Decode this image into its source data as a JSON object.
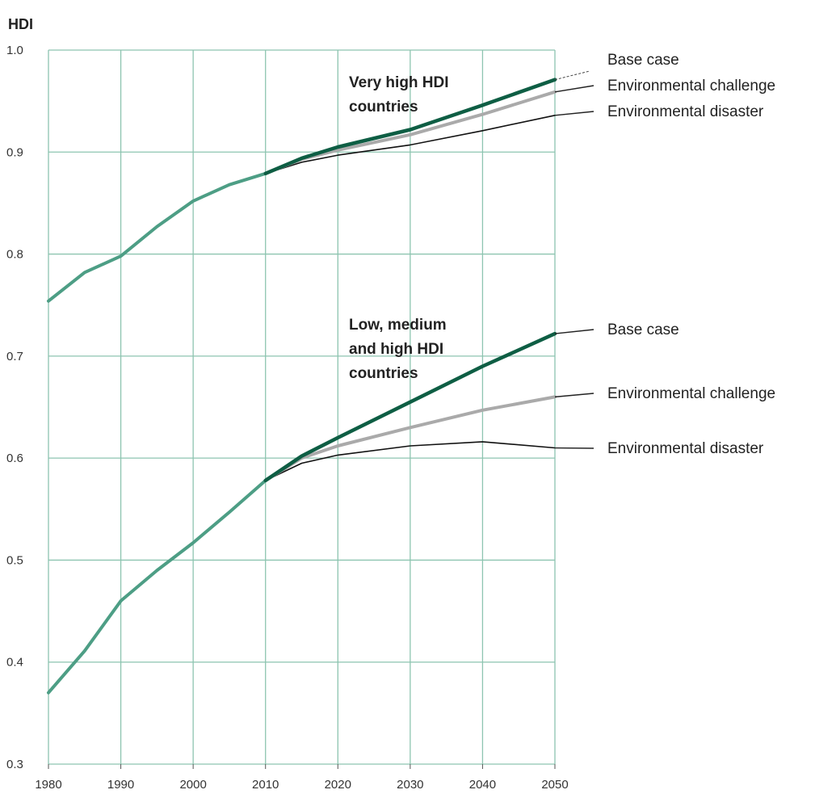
{
  "chart_data": {
    "type": "line",
    "ylabel": "HDI",
    "xlim": [
      1980,
      2050
    ],
    "ylim": [
      0.3,
      1.0
    ],
    "xticks": [
      "1980",
      "1990",
      "2000",
      "2010",
      "2020",
      "2030",
      "2040",
      "2050"
    ],
    "yticks": [
      "0.3",
      "0.4",
      "0.5",
      "0.6",
      "0.7",
      "0.8",
      "0.9",
      "1.0"
    ],
    "grid": true,
    "colors": {
      "historical": "#4d9e85",
      "base": "#0e5e44",
      "challenge": "#aaaaaa",
      "disaster": "#111111",
      "grid": "#8dc4b0"
    },
    "groups": [
      {
        "label_lines": [
          "Very high HDI",
          "countries"
        ],
        "historical": {
          "x": [
            1980,
            1985,
            1990,
            1995,
            2000,
            2005,
            2010
          ],
          "y": [
            0.754,
            0.782,
            0.798,
            0.827,
            0.852,
            0.868,
            0.879
          ]
        },
        "series": [
          {
            "name": "Base case",
            "x": [
              2010,
              2015,
              2020,
              2030,
              2040,
              2050
            ],
            "y": [
              0.879,
              0.894,
              0.905,
              0.922,
              0.946,
              0.971
            ]
          },
          {
            "name": "Environmental challenge",
            "x": [
              2010,
              2015,
              2020,
              2030,
              2040,
              2050
            ],
            "y": [
              0.879,
              0.893,
              0.902,
              0.917,
              0.937,
              0.959
            ]
          },
          {
            "name": "Environmental disaster",
            "x": [
              2010,
              2015,
              2020,
              2030,
              2040,
              2050
            ],
            "y": [
              0.879,
              0.89,
              0.897,
              0.907,
              0.921,
              0.936
            ]
          }
        ]
      },
      {
        "label_lines": [
          "Low, medium",
          "and high HDI",
          "countries"
        ],
        "historical": {
          "x": [
            1980,
            1985,
            1990,
            1995,
            2000,
            2005,
            2010
          ],
          "y": [
            0.37,
            0.411,
            0.46,
            0.49,
            0.517,
            0.547,
            0.578
          ]
        },
        "series": [
          {
            "name": "Base case",
            "x": [
              2010,
              2015,
              2020,
              2030,
              2040,
              2050
            ],
            "y": [
              0.578,
              0.602,
              0.62,
              0.655,
              0.69,
              0.722
            ]
          },
          {
            "name": "Environmental challenge",
            "x": [
              2010,
              2015,
              2020,
              2030,
              2040,
              2050
            ],
            "y": [
              0.578,
              0.6,
              0.612,
              0.63,
              0.647,
              0.66
            ]
          },
          {
            "name": "Environmental disaster",
            "x": [
              2010,
              2015,
              2020,
              2030,
              2040,
              2050
            ],
            "y": [
              0.578,
              0.595,
              0.603,
              0.612,
              0.616,
              0.61
            ]
          }
        ]
      }
    ]
  }
}
